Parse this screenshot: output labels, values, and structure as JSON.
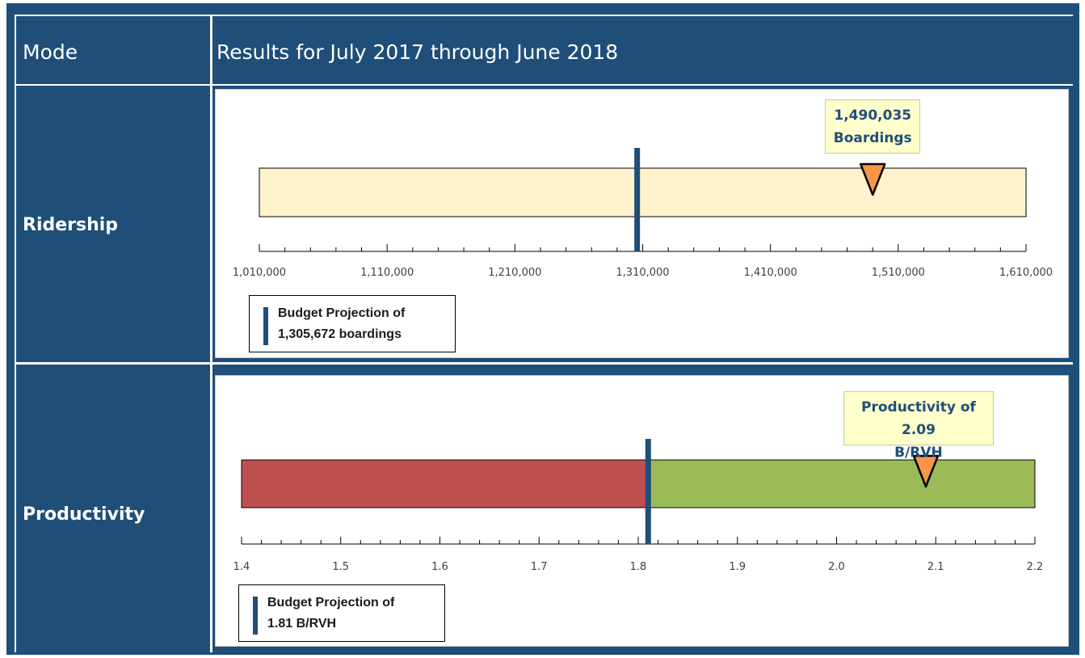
{
  "header": {
    "mode_label": "Mode",
    "results_label": "Results for July 2017 through June 2018"
  },
  "colors": {
    "frame_blue": "#1f4e79",
    "target_bar": "#1f4e79",
    "marker_orange": "#f79646",
    "ridership_fill": "#fff2cc",
    "below_target_red": "#c0504d",
    "above_target_green": "#9bbb59"
  },
  "rows": [
    {
      "label": "Ridership"
    },
    {
      "label": "Productivity"
    }
  ],
  "chart_data": [
    {
      "type": "bullet",
      "name_label": "Ridership",
      "xlim": [
        1010000,
        1610000
      ],
      "ticks": [
        "1,010,000",
        "1,110,000",
        "1,210,000",
        "1,310,000",
        "1,410,000",
        "1,510,000",
        "1,610,000"
      ],
      "tick_values": [
        1010000,
        1110000,
        1210000,
        1310000,
        1410000,
        1510000,
        1610000
      ],
      "minor_ticks_per_major": 4,
      "bands": [
        {
          "from": 1010000,
          "to": 1610000,
          "color": "#fff2cc"
        }
      ],
      "target": 1305672,
      "actual": 1490035,
      "actual_label_lines": [
        "1,490,035",
        "Boardings"
      ],
      "legend_lines": [
        "Budget Projection of",
        "1,305,672  boardings"
      ]
    },
    {
      "type": "bullet",
      "name_label": "Productivity",
      "xlim": [
        1.4,
        2.2
      ],
      "ticks": [
        "1.4",
        "1.5",
        "1.6",
        "1.7",
        "1.8",
        "1.9",
        "2.0",
        "2.1",
        "2.2"
      ],
      "tick_values": [
        1.4,
        1.5,
        1.6,
        1.7,
        1.8,
        1.9,
        2.0,
        2.1,
        2.2
      ],
      "minor_ticks_per_major": 4,
      "bands": [
        {
          "from": 1.4,
          "to": 1.81,
          "color": "#c0504d"
        },
        {
          "from": 1.81,
          "to": 2.2,
          "color": "#9bbb59"
        }
      ],
      "target": 1.81,
      "actual": 2.09,
      "actual_label_lines": [
        "Productivity of 2.09",
        "B/RVH"
      ],
      "legend_lines": [
        "Budget Projection of",
        "1.81  B/RVH"
      ]
    }
  ]
}
